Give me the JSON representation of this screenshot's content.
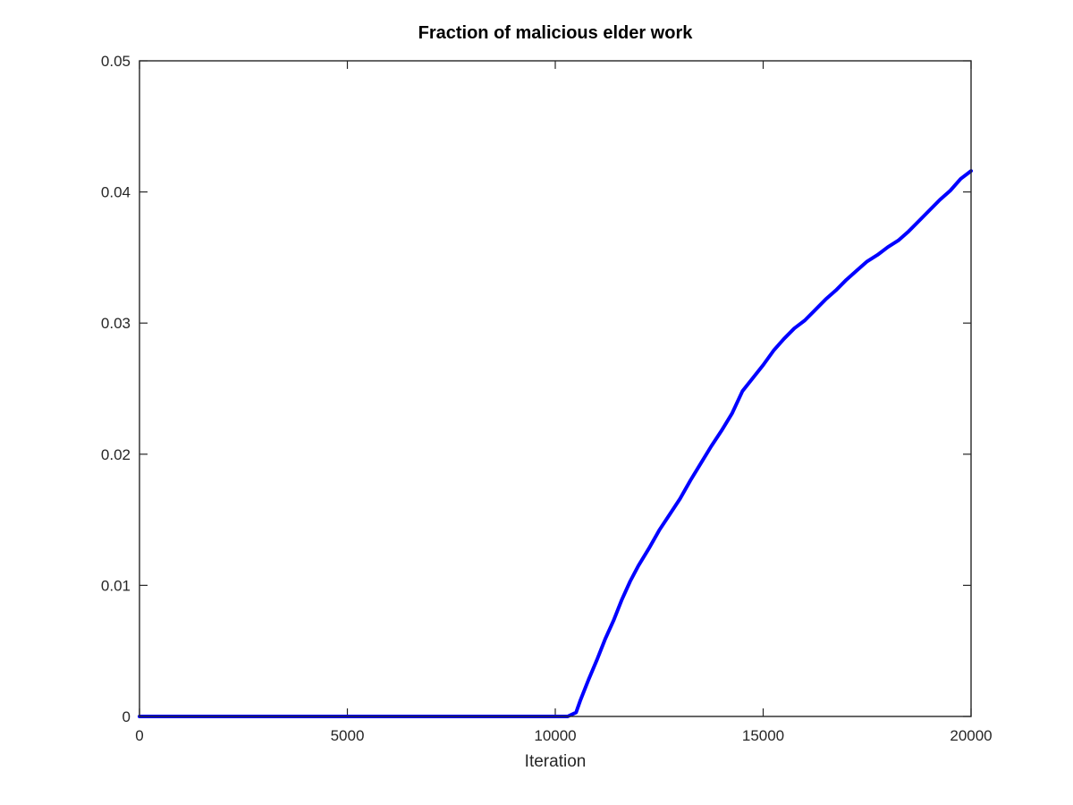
{
  "chart_data": {
    "type": "line",
    "title": "Fraction of malicious elder work",
    "xlabel": "Iteration",
    "ylabel": "",
    "xlim": [
      0,
      20000
    ],
    "ylim": [
      0,
      0.05
    ],
    "xticks": [
      0,
      5000,
      10000,
      15000,
      20000
    ],
    "xtick_labels": [
      "0",
      "5000",
      "10000",
      "15000",
      "20000"
    ],
    "yticks": [
      0,
      0.01,
      0.02,
      0.03,
      0.04,
      0.05
    ],
    "ytick_labels": [
      "0",
      "0.01",
      "0.02",
      "0.03",
      "0.04",
      "0.05"
    ],
    "grid": false,
    "colors": {
      "line": "#0000ff",
      "axes": "#262626",
      "background": "#ffffff"
    },
    "series": [
      {
        "x": [
          0,
          2000,
          4000,
          6000,
          8000,
          10000,
          10300,
          10500,
          10600,
          10800,
          11000,
          11200,
          11400,
          11600,
          11800,
          12000,
          12250,
          12500,
          12750,
          13000,
          13250,
          13500,
          13750,
          14000,
          14250,
          14500,
          14750,
          15000,
          15250,
          15500,
          15750,
          16000,
          16250,
          16500,
          16750,
          17000,
          17250,
          17500,
          17750,
          18000,
          18250,
          18500,
          18750,
          19000,
          19250,
          19500,
          19750,
          20000
        ],
        "y": [
          0,
          0,
          0,
          0,
          0,
          0,
          0,
          0.0003,
          0.0012,
          0.0028,
          0.0043,
          0.0059,
          0.0073,
          0.0089,
          0.0103,
          0.0115,
          0.0128,
          0.0142,
          0.0154,
          0.0166,
          0.018,
          0.0193,
          0.0206,
          0.0218,
          0.0231,
          0.0248,
          0.0258,
          0.0268,
          0.0279,
          0.0288,
          0.0296,
          0.0302,
          0.031,
          0.0318,
          0.0325,
          0.0333,
          0.034,
          0.0347,
          0.0352,
          0.0358,
          0.0363,
          0.037,
          0.0378,
          0.0386,
          0.0394,
          0.0401,
          0.041,
          0.0416
        ]
      }
    ]
  }
}
